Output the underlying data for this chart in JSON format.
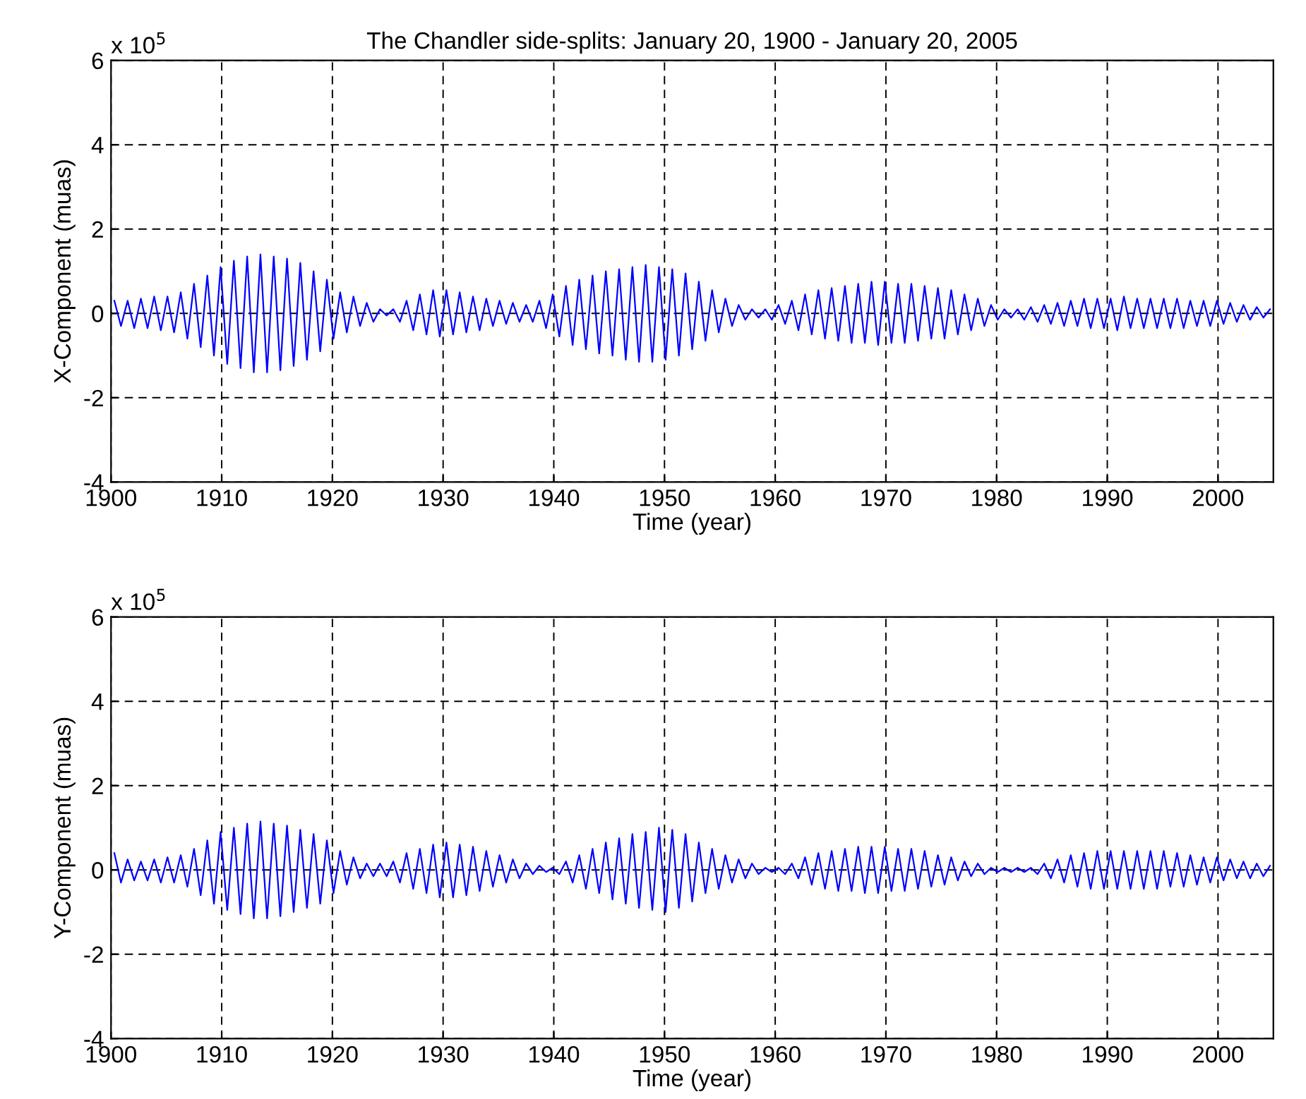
{
  "chart_data": [
    {
      "type": "line",
      "title": "The Chandler side-splits: January 20, 1900 - January 20, 2005",
      "xlabel": "Time (year)",
      "ylabel": "X-Component (muas)",
      "annotations": [
        "x 10$^{5}$"
      ],
      "xlim": [
        1900,
        2005
      ],
      "xticks": [
        1900,
        1910,
        1920,
        1930,
        1940,
        1950,
        1960,
        1970,
        1980,
        1990,
        2000
      ],
      "ylim": [
        -4,
        6
      ],
      "yticks": [
        -4,
        -2,
        0,
        2,
        4,
        6
      ],
      "grid": true,
      "line_style": "solid",
      "marker": "none",
      "x": [
        1900.3,
        1900.9,
        1901.5,
        1902.1,
        1902.7,
        1903.3,
        1903.9,
        1904.5,
        1905.1,
        1905.7,
        1906.3,
        1906.9,
        1907.5,
        1908.1,
        1908.7,
        1909.3,
        1909.9,
        1910.5,
        1911.1,
        1911.7,
        1912.3,
        1912.9,
        1913.5,
        1914.1,
        1914.7,
        1915.3,
        1915.9,
        1916.5,
        1917.1,
        1917.7,
        1918.3,
        1918.9,
        1919.5,
        1920.1,
        1920.7,
        1921.3,
        1921.9,
        1922.5,
        1923.1,
        1923.7,
        1924.3,
        1924.9,
        1925.5,
        1926.1,
        1926.7,
        1927.3,
        1927.9,
        1928.5,
        1929.1,
        1929.7,
        1930.3,
        1930.9,
        1931.5,
        1932.1,
        1932.7,
        1933.3,
        1933.9,
        1934.5,
        1935.1,
        1935.7,
        1936.3,
        1936.9,
        1937.5,
        1938.1,
        1938.7,
        1939.3,
        1939.9,
        1940.5,
        1941.1,
        1941.7,
        1942.3,
        1942.9,
        1943.5,
        1944.1,
        1944.7,
        1945.3,
        1945.9,
        1946.5,
        1947.1,
        1947.7,
        1948.3,
        1948.9,
        1949.5,
        1950.1,
        1950.7,
        1951.3,
        1951.9,
        1952.5,
        1953.1,
        1953.7,
        1954.3,
        1954.9,
        1955.5,
        1956.1,
        1956.7,
        1957.3,
        1957.9,
        1958.5,
        1959.1,
        1959.7,
        1960.3,
        1960.9,
        1961.5,
        1962.1,
        1962.7,
        1963.3,
        1963.9,
        1964.5,
        1965.1,
        1965.7,
        1966.3,
        1966.9,
        1967.5,
        1968.1,
        1968.7,
        1969.3,
        1969.9,
        1970.5,
        1971.1,
        1971.7,
        1972.3,
        1972.9,
        1973.5,
        1974.1,
        1974.7,
        1975.3,
        1975.9,
        1976.5,
        1977.1,
        1977.7,
        1978.3,
        1978.9,
        1979.5,
        1980.1,
        1980.7,
        1981.3,
        1981.9,
        1982.5,
        1983.1,
        1983.7,
        1984.3,
        1984.9,
        1985.5,
        1986.1,
        1986.7,
        1987.3,
        1987.9,
        1988.5,
        1989.1,
        1989.7,
        1990.3,
        1990.9,
        1991.5,
        1992.1,
        1992.7,
        1993.3,
        1993.9,
        1994.5,
        1995.1,
        1995.7,
        1996.3,
        1996.9,
        1997.5,
        1998.1,
        1998.7,
        1999.3,
        1999.9,
        2000.5,
        2001.1,
        2001.7,
        2002.3,
        2002.9,
        2003.5,
        2004.1,
        2004.7
      ],
      "series": [
        {
          "color": "#0000ff",
          "values": [
            0.3,
            -0.3,
            0.3,
            -0.35,
            0.35,
            -0.35,
            0.4,
            -0.4,
            0.4,
            -0.45,
            0.5,
            -0.6,
            0.7,
            -0.8,
            0.9,
            -1.0,
            1.1,
            -1.2,
            1.25,
            -1.3,
            1.35,
            -1.4,
            1.4,
            -1.4,
            1.35,
            -1.35,
            1.3,
            -1.25,
            1.2,
            -1.1,
            1.0,
            -0.9,
            0.8,
            -0.6,
            0.5,
            -0.45,
            0.4,
            -0.3,
            0.25,
            -0.2,
            0.1,
            -0.05,
            0.1,
            -0.2,
            0.3,
            -0.4,
            0.45,
            -0.5,
            0.55,
            -0.55,
            0.55,
            -0.5,
            0.5,
            -0.45,
            0.4,
            -0.4,
            0.35,
            -0.3,
            0.3,
            -0.25,
            0.25,
            -0.2,
            0.2,
            -0.2,
            0.3,
            -0.35,
            0.45,
            -0.55,
            0.65,
            -0.75,
            0.8,
            -0.85,
            0.9,
            -0.95,
            1.0,
            -1.0,
            1.05,
            -1.1,
            1.1,
            -1.15,
            1.15,
            -1.15,
            1.1,
            -1.1,
            1.05,
            -1.0,
            0.95,
            -0.85,
            0.75,
            -0.65,
            0.55,
            -0.45,
            0.35,
            -0.3,
            0.2,
            -0.15,
            0.1,
            -0.1,
            0.1,
            -0.15,
            0.2,
            -0.25,
            0.3,
            -0.4,
            0.45,
            -0.5,
            0.55,
            -0.6,
            0.6,
            -0.65,
            0.65,
            -0.7,
            0.7,
            -0.7,
            0.75,
            -0.75,
            0.75,
            -0.7,
            0.7,
            -0.7,
            0.7,
            -0.65,
            0.65,
            -0.6,
            0.6,
            -0.6,
            0.55,
            -0.5,
            0.45,
            -0.4,
            0.35,
            -0.3,
            0.2,
            -0.15,
            0.1,
            -0.1,
            0.1,
            -0.15,
            0.15,
            -0.2,
            0.2,
            -0.25,
            0.25,
            -0.3,
            0.3,
            -0.3,
            0.35,
            -0.35,
            0.35,
            -0.35,
            0.35,
            -0.4,
            0.4,
            -0.35,
            0.35,
            -0.35,
            0.35,
            -0.35,
            0.35,
            -0.35,
            0.35,
            -0.35,
            0.3,
            -0.3,
            0.3,
            -0.3,
            0.3,
            -0.25,
            0.25,
            -0.2,
            0.2,
            -0.15,
            0.15,
            -0.1,
            0.1
          ]
        }
      ]
    },
    {
      "type": "line",
      "xlabel": "Time (year)",
      "ylabel": "Y-Component (muas)",
      "annotations": [
        "x 10$^{5}$"
      ],
      "xlim": [
        1900,
        2005
      ],
      "xticks": [
        1900,
        1910,
        1920,
        1930,
        1940,
        1950,
        1960,
        1970,
        1980,
        1990,
        2000
      ],
      "ylim": [
        -4,
        6
      ],
      "yticks": [
        -4,
        -2,
        0,
        2,
        4,
        6
      ],
      "grid": true,
      "line_style": "solid",
      "marker": "none",
      "x": [
        1900.3,
        1900.9,
        1901.5,
        1902.1,
        1902.7,
        1903.3,
        1903.9,
        1904.5,
        1905.1,
        1905.7,
        1906.3,
        1906.9,
        1907.5,
        1908.1,
        1908.7,
        1909.3,
        1909.9,
        1910.5,
        1911.1,
        1911.7,
        1912.3,
        1912.9,
        1913.5,
        1914.1,
        1914.7,
        1915.3,
        1915.9,
        1916.5,
        1917.1,
        1917.7,
        1918.3,
        1918.9,
        1919.5,
        1920.1,
        1920.7,
        1921.3,
        1921.9,
        1922.5,
        1923.1,
        1923.7,
        1924.3,
        1924.9,
        1925.5,
        1926.1,
        1926.7,
        1927.3,
        1927.9,
        1928.5,
        1929.1,
        1929.7,
        1930.3,
        1930.9,
        1931.5,
        1932.1,
        1932.7,
        1933.3,
        1933.9,
        1934.5,
        1935.1,
        1935.7,
        1936.3,
        1936.9,
        1937.5,
        1938.1,
        1938.7,
        1939.3,
        1939.9,
        1940.5,
        1941.1,
        1941.7,
        1942.3,
        1942.9,
        1943.5,
        1944.1,
        1944.7,
        1945.3,
        1945.9,
        1946.5,
        1947.1,
        1947.7,
        1948.3,
        1948.9,
        1949.5,
        1950.1,
        1950.7,
        1951.3,
        1951.9,
        1952.5,
        1953.1,
        1953.7,
        1954.3,
        1954.9,
        1955.5,
        1956.1,
        1956.7,
        1957.3,
        1957.9,
        1958.5,
        1959.1,
        1959.7,
        1960.3,
        1960.9,
        1961.5,
        1962.1,
        1962.7,
        1963.3,
        1963.9,
        1964.5,
        1965.1,
        1965.7,
        1966.3,
        1966.9,
        1967.5,
        1968.1,
        1968.7,
        1969.3,
        1969.9,
        1970.5,
        1971.1,
        1971.7,
        1972.3,
        1972.9,
        1973.5,
        1974.1,
        1974.7,
        1975.3,
        1975.9,
        1976.5,
        1977.1,
        1977.7,
        1978.3,
        1978.9,
        1979.5,
        1980.1,
        1980.7,
        1981.3,
        1981.9,
        1982.5,
        1983.1,
        1983.7,
        1984.3,
        1984.9,
        1985.5,
        1986.1,
        1986.7,
        1987.3,
        1987.9,
        1988.5,
        1989.1,
        1989.7,
        1990.3,
        1990.9,
        1991.5,
        1992.1,
        1992.7,
        1993.3,
        1993.9,
        1994.5,
        1995.1,
        1995.7,
        1996.3,
        1996.9,
        1997.5,
        1998.1,
        1998.7,
        1999.3,
        1999.9,
        2000.5,
        2001.1,
        2001.7,
        2002.3,
        2002.9,
        2003.5,
        2004.1,
        2004.7
      ],
      "series": [
        {
          "color": "#0000ff",
          "values": [
            0.4,
            -0.3,
            0.25,
            -0.25,
            0.2,
            -0.25,
            0.25,
            -0.3,
            0.3,
            -0.3,
            0.35,
            -0.4,
            0.5,
            -0.6,
            0.7,
            -0.8,
            0.9,
            -0.95,
            1.0,
            -1.05,
            1.1,
            -1.15,
            1.15,
            -1.15,
            1.1,
            -1.1,
            1.05,
            -1.0,
            0.95,
            -0.9,
            0.85,
            -0.8,
            0.7,
            -0.55,
            0.45,
            -0.35,
            0.3,
            -0.2,
            0.15,
            -0.15,
            0.15,
            -0.15,
            0.2,
            -0.3,
            0.4,
            -0.45,
            0.5,
            -0.55,
            0.6,
            -0.65,
            0.65,
            -0.65,
            0.6,
            -0.6,
            0.55,
            -0.5,
            0.45,
            -0.4,
            0.35,
            -0.3,
            0.25,
            -0.2,
            0.15,
            -0.1,
            0.1,
            -0.05,
            0.05,
            -0.1,
            0.2,
            -0.3,
            0.35,
            -0.45,
            0.5,
            -0.55,
            0.65,
            -0.7,
            0.75,
            -0.8,
            0.85,
            -0.9,
            0.9,
            -0.95,
            1.0,
            -1.0,
            0.95,
            -0.9,
            0.85,
            -0.75,
            0.65,
            -0.55,
            0.5,
            -0.45,
            0.35,
            -0.3,
            0.25,
            -0.2,
            0.15,
            -0.1,
            0.05,
            -0.05,
            0.05,
            -0.1,
            0.15,
            -0.2,
            0.3,
            -0.35,
            0.4,
            -0.45,
            0.45,
            -0.5,
            0.5,
            -0.5,
            0.55,
            -0.55,
            0.55,
            -0.55,
            0.55,
            -0.5,
            0.5,
            -0.5,
            0.5,
            -0.45,
            0.45,
            -0.4,
            0.35,
            -0.35,
            0.3,
            -0.25,
            0.2,
            -0.15,
            0.15,
            -0.1,
            0.05,
            -0.05,
            0.05,
            -0.05,
            0.05,
            -0.05,
            0.05,
            -0.1,
            0.15,
            -0.2,
            0.25,
            -0.3,
            0.35,
            -0.4,
            0.4,
            -0.45,
            0.45,
            -0.45,
            0.45,
            -0.45,
            0.45,
            -0.45,
            0.45,
            -0.45,
            0.45,
            -0.45,
            0.45,
            -0.4,
            0.4,
            -0.4,
            0.35,
            -0.35,
            0.3,
            -0.3,
            0.3,
            -0.25,
            0.25,
            -0.2,
            0.2,
            -0.2,
            0.15,
            -0.15,
            0.1
          ]
        }
      ]
    }
  ]
}
